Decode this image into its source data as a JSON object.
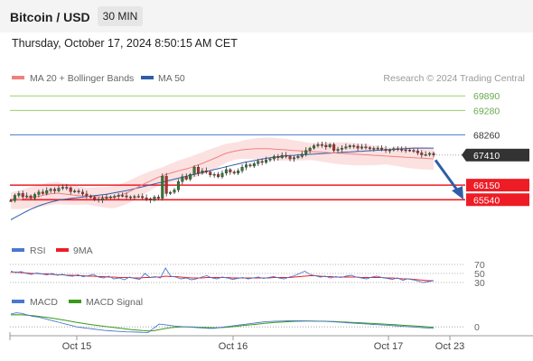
{
  "header": {
    "title": "Bitcoin / USD",
    "timeframe": "30 MIN"
  },
  "datetime": "Thursday, October 17, 2024 8:50:15 AM CET",
  "credit": "Research © 2024 Trading Central",
  "colors": {
    "ma20": "#f08080",
    "ma50": "#2f5ea7",
    "resistance": "#9ccf6c",
    "support": "#ee1c25",
    "pivot": "#4a78cc",
    "last": "#333333",
    "arrow": "#2f5ea7",
    "rsi": "#4a78cc",
    "rsi_ma": "#ee1c25",
    "macd": "#4a78cc",
    "macd_signal": "#3a9a1a"
  },
  "chart_data": [
    {
      "type": "candlestick",
      "legend": [
        "MA 20 + Bollinger Bands",
        "MA 50"
      ],
      "x_ticks": [
        "Oct 15",
        "Oct 16",
        "Oct 17",
        "Oct 23"
      ],
      "ylim": [
        64000,
        70200
      ],
      "levels": [
        {
          "value": 69890,
          "label": "69890",
          "kind": "resistance"
        },
        {
          "value": 69280,
          "label": "69280",
          "kind": "resistance"
        },
        {
          "value": 68260,
          "label": "68260",
          "kind": "pivot"
        },
        {
          "value": 67410,
          "label": "67410",
          "kind": "last"
        },
        {
          "value": 66150,
          "label": "66150",
          "kind": "support"
        },
        {
          "value": 65540,
          "label": "65540",
          "kind": "support"
        }
      ],
      "closes": [
        65500,
        65720,
        65800,
        65660,
        65700,
        65610,
        65760,
        65860,
        65800,
        65920,
        65980,
        65910,
        66020,
        66060,
        66040,
        65880,
        65900,
        65860,
        65780,
        65700,
        65640,
        65560,
        65520,
        65600,
        65640,
        65660,
        65680,
        65720,
        65700,
        65650,
        65660,
        65670,
        65680,
        65620,
        65580,
        65520,
        65650,
        65600,
        66520,
        65800,
        65850,
        65950,
        66300,
        66500,
        66400,
        66600,
        66900,
        66650,
        66750,
        66700,
        66580,
        66600,
        66500,
        66650,
        66800,
        66700,
        66650,
        66750,
        66900,
        67000,
        66950,
        67050,
        67150,
        67100,
        67200,
        67250,
        67350,
        67300,
        67400,
        67350,
        67250,
        67300,
        67350,
        67450,
        67600,
        67700,
        67800,
        67850,
        67820,
        67750,
        67850,
        67600,
        67650,
        67700,
        67750,
        67800,
        67780,
        67700,
        67750,
        67720,
        67680,
        67690,
        67700,
        67650,
        67600,
        67620,
        67680,
        67650,
        67630,
        67620,
        67600,
        67580,
        67500,
        67420,
        67430,
        67480,
        67410
      ],
      "ma20": [
        65500,
        65520,
        65530,
        65560,
        65600,
        65640,
        65660,
        65680,
        65720,
        65760,
        65790,
        65810,
        65810,
        65790,
        65770,
        65750,
        65730,
        65710,
        65700,
        65690,
        65680,
        65670,
        65660,
        65650,
        65640,
        65640,
        65650,
        65700,
        65760,
        65820,
        65900,
        65990,
        66080,
        66170,
        66250,
        66330,
        66410,
        66480,
        66540,
        66600,
        66650,
        66700,
        66750,
        66790,
        66830,
        66880,
        66940,
        67000,
        67060,
        67130,
        67200,
        67270,
        67340,
        67420,
        67480,
        67530,
        67570,
        67600,
        67630,
        67650,
        67660,
        67670,
        67680,
        67680,
        67680,
        67670,
        67660,
        67650,
        67640,
        67630,
        67610,
        67600,
        67590,
        67580,
        67570,
        67560,
        67550,
        67540,
        67530,
        67520,
        67510,
        67500,
        67490,
        67480,
        67470,
        67460,
        67450,
        67440,
        67430,
        67420,
        67410,
        67400,
        67390,
        67380,
        67370,
        67360,
        67350,
        67340,
        67330,
        67320,
        67310,
        67300,
        67290,
        67280,
        67270,
        67260,
        67250
      ],
      "ma50": [
        64700,
        64790,
        64880,
        64970,
        65060,
        65140,
        65210,
        65280,
        65340,
        65390,
        65440,
        65480,
        65520,
        65550,
        65570,
        65590,
        65610,
        65630,
        65650,
        65670,
        65690,
        65710,
        65730,
        65750,
        65770,
        65800,
        65830,
        65860,
        65890,
        65920,
        65960,
        66000,
        66040,
        66080,
        66120,
        66160,
        66200,
        66240,
        66280,
        66320,
        66360,
        66400,
        66440,
        66480,
        66520,
        66560,
        66600,
        66640,
        66680,
        66720,
        66760,
        66800,
        66840,
        66880,
        66920,
        66960,
        67000,
        67040,
        67080,
        67120,
        67150,
        67180,
        67210,
        67240,
        67270,
        67300,
        67320,
        67340,
        67360,
        67380,
        67390,
        67400,
        67410,
        67420,
        67430,
        67440,
        67450,
        67460,
        67470,
        67480,
        67490,
        67500,
        67510,
        67520,
        67530,
        67540,
        67550,
        67560,
        67570,
        67580,
        67590,
        67600,
        67610,
        67620,
        67630,
        67640,
        67650,
        67660,
        67670,
        67680,
        67690,
        67700,
        67700,
        67700,
        67700,
        67700,
        67700
      ]
    },
    {
      "type": "line",
      "legend": [
        "RSI",
        "9MA"
      ],
      "levels": [
        70,
        50,
        30
      ],
      "ylim": [
        0,
        100
      ],
      "rsi": [
        55,
        52,
        54,
        50,
        48,
        51,
        49,
        47,
        50,
        46,
        48,
        45,
        44,
        47,
        43,
        45,
        48,
        42,
        40,
        44,
        38,
        40,
        36,
        42,
        39,
        37,
        50,
        41,
        43,
        40,
        62,
        44,
        42,
        38,
        40,
        36,
        38,
        42,
        45,
        40,
        38,
        42,
        40,
        37,
        39,
        41,
        38,
        40,
        42,
        39,
        41,
        43,
        40,
        38,
        42,
        45,
        50,
        55,
        48,
        45,
        42,
        44,
        40,
        43,
        41,
        44,
        46,
        42,
        40,
        38,
        42,
        44,
        41,
        39,
        37,
        40,
        35,
        38,
        36,
        33,
        30,
        32,
        34
      ],
      "rsi_ma": [
        53,
        53,
        52,
        51,
        50,
        50,
        49,
        49,
        48,
        47,
        47,
        46,
        46,
        45,
        45,
        44,
        44,
        43,
        43,
        42,
        42,
        41,
        41,
        41,
        40,
        40,
        41,
        41,
        42,
        42,
        44,
        43,
        43,
        42,
        41,
        40,
        40,
        40,
        41,
        41,
        41,
        41,
        41,
        40,
        40,
        40,
        40,
        40,
        40,
        40,
        40,
        41,
        41,
        41,
        41,
        42,
        43,
        44,
        45,
        45,
        44,
        43,
        43,
        42,
        42,
        42,
        42,
        42,
        41,
        41,
        41,
        41,
        41,
        40,
        40,
        39,
        38,
        38,
        37,
        36,
        35,
        34,
        34
      ]
    },
    {
      "type": "line",
      "legend": [
        "MACD",
        "MACD Signal"
      ],
      "levels": [
        0
      ],
      "macd": [
        180,
        200,
        190,
        170,
        150,
        140,
        120,
        100,
        80,
        60,
        40,
        20,
        0,
        -10,
        -20,
        -30,
        -40,
        -50,
        -55,
        -60,
        -65,
        -70,
        -72,
        -75,
        -78,
        -80,
        -20,
        40,
        30,
        20,
        10,
        5,
        0,
        -5,
        -10,
        -15,
        -20,
        -20,
        -10,
        0,
        10,
        20,
        30,
        40,
        50,
        60,
        70,
        75,
        80,
        82,
        84,
        85,
        86,
        85,
        84,
        82,
        80,
        78,
        75,
        70,
        65,
        60,
        55,
        50,
        45,
        40,
        35,
        30,
        25,
        20,
        15,
        10,
        5,
        0,
        -5,
        -10,
        -15,
        -20
      ],
      "signal": [
        170,
        172,
        170,
        165,
        158,
        150,
        140,
        130,
        118,
        105,
        92,
        78,
        64,
        52,
        40,
        28,
        18,
        8,
        0,
        -10,
        -20,
        -30,
        -38,
        -45,
        -52,
        -58,
        -55,
        -40,
        -25,
        -12,
        -5,
        0,
        0,
        -2,
        -5,
        -8,
        -10,
        -12,
        -10,
        -6,
        0,
        8,
        16,
        24,
        32,
        40,
        48,
        55,
        62,
        67,
        72,
        76,
        79,
        81,
        82,
        82,
        81,
        80,
        78,
        75,
        72,
        68,
        64,
        60,
        56,
        52,
        48,
        44,
        40,
        35,
        30,
        25,
        20,
        15,
        10,
        5,
        0,
        -5
      ]
    }
  ]
}
